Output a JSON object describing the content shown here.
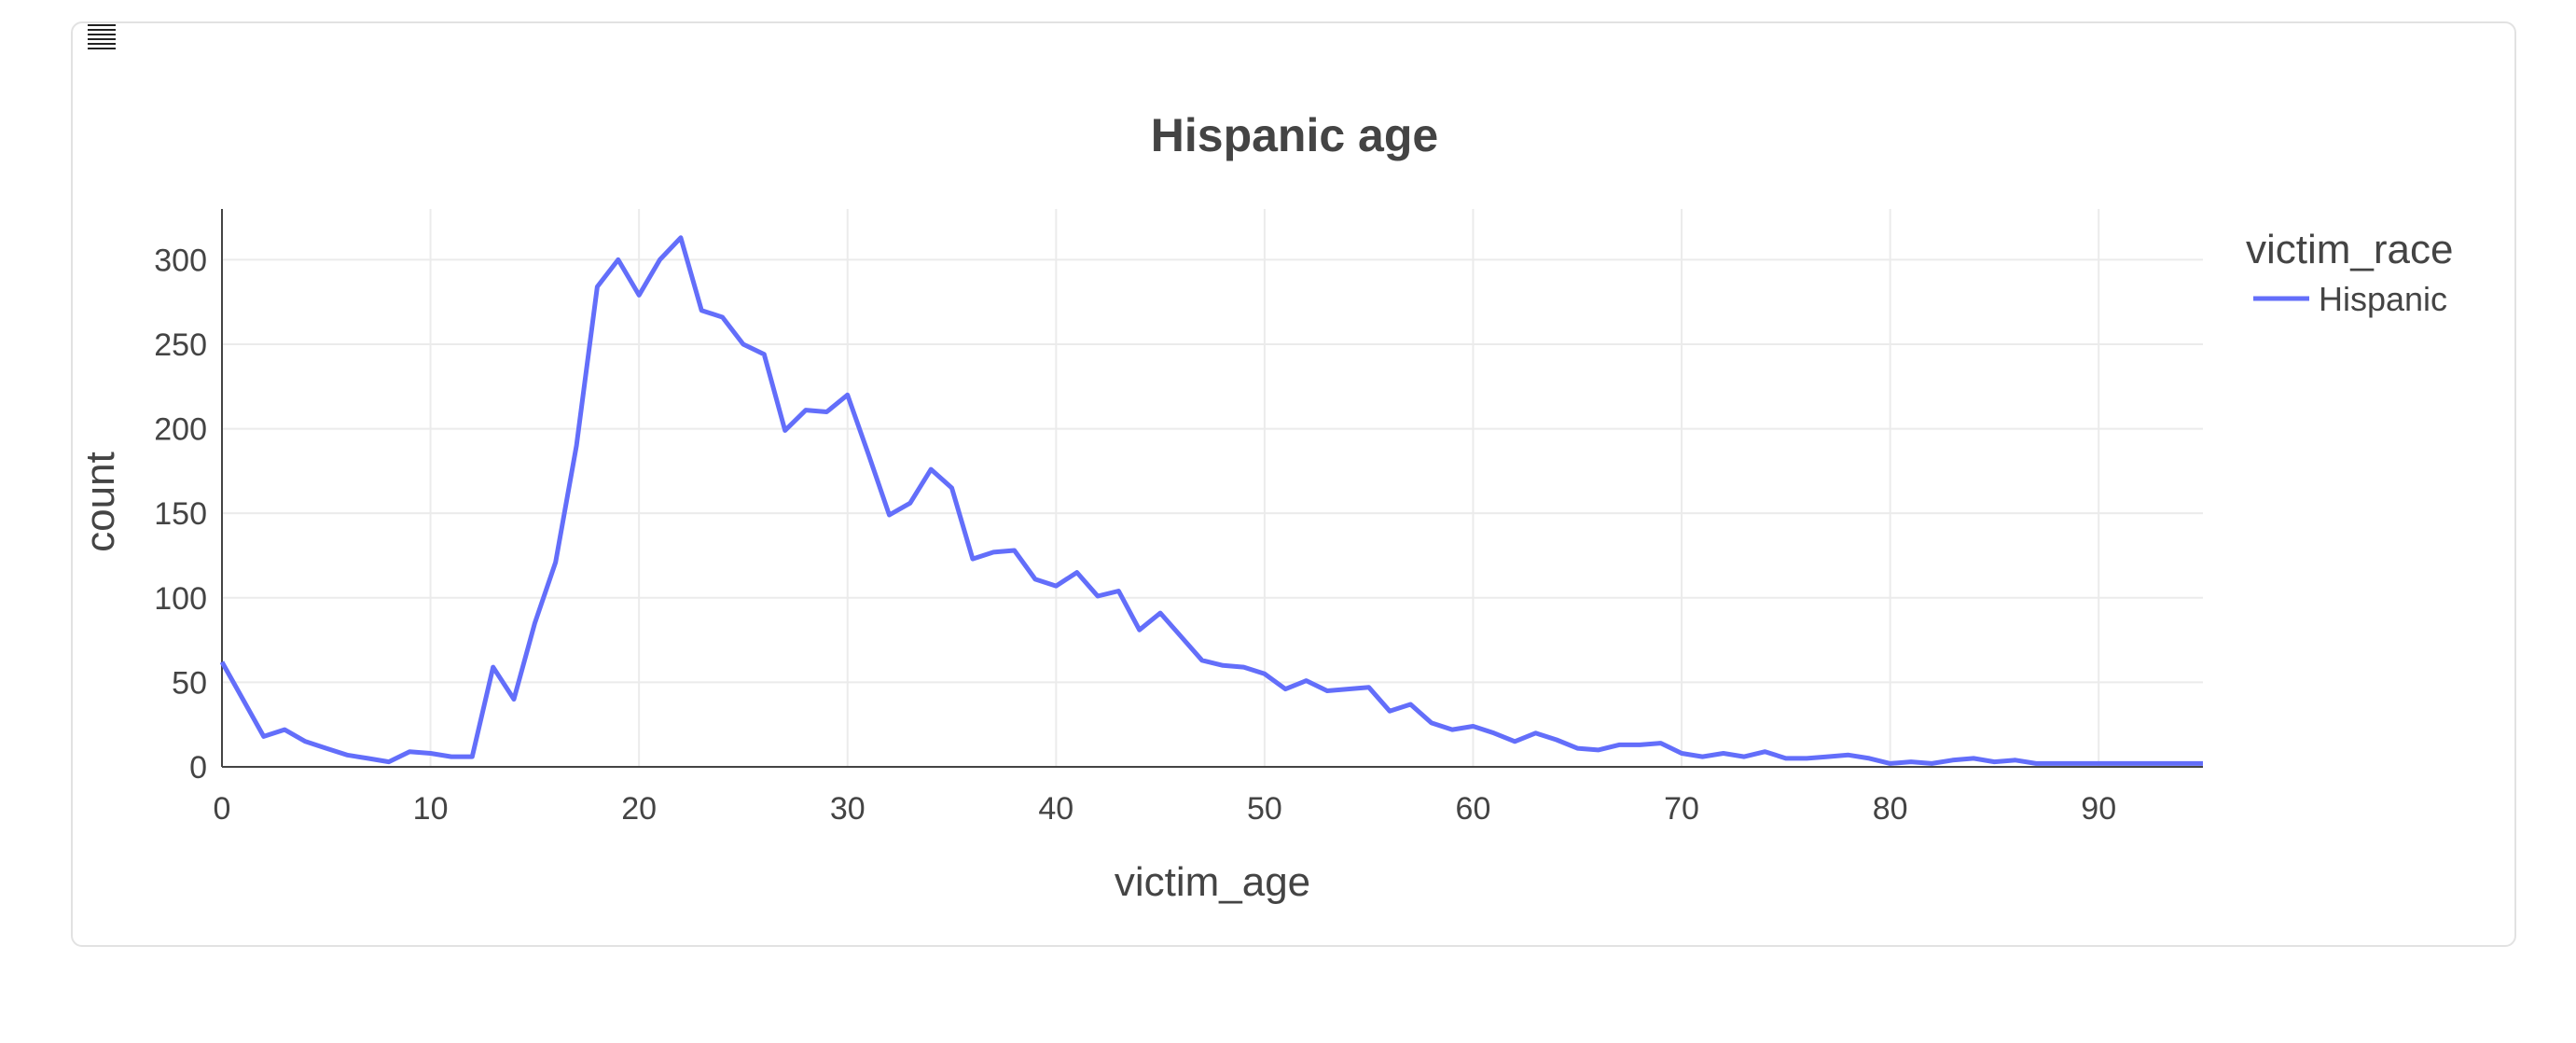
{
  "toolbar": {
    "menu_icon": "list-icon"
  },
  "chart_data": {
    "type": "line",
    "title": "Hispanic age",
    "xlabel": "victim_age",
    "ylabel": "count",
    "xlim": [
      0,
      95
    ],
    "ylim": [
      0,
      330
    ],
    "xticks": [
      0,
      10,
      20,
      30,
      40,
      50,
      60,
      70,
      80,
      90
    ],
    "yticks": [
      0,
      50,
      100,
      150,
      200,
      250,
      300
    ],
    "grid": true,
    "legend_title": "victim_race",
    "legend_position": "top-right",
    "series": [
      {
        "name": "Hispanic",
        "color": "#636efa",
        "x": [
          0,
          1,
          2,
          3,
          4,
          5,
          6,
          7,
          8,
          9,
          10,
          11,
          12,
          13,
          14,
          15,
          16,
          17,
          18,
          19,
          20,
          21,
          22,
          23,
          24,
          25,
          26,
          27,
          28,
          29,
          30,
          31,
          32,
          33,
          34,
          35,
          36,
          37,
          38,
          39,
          40,
          41,
          42,
          43,
          44,
          45,
          46,
          47,
          48,
          49,
          50,
          51,
          52,
          53,
          54,
          55,
          56,
          57,
          58,
          59,
          60,
          61,
          62,
          63,
          64,
          65,
          66,
          67,
          68,
          69,
          70,
          71,
          72,
          73,
          74,
          75,
          76,
          77,
          78,
          79,
          80,
          81,
          82,
          83,
          84,
          85,
          86,
          87,
          88,
          89,
          90,
          91,
          92,
          93,
          94,
          95
        ],
        "y": [
          62,
          40,
          18,
          22,
          15,
          11,
          7,
          5,
          3,
          9,
          8,
          6,
          6,
          59,
          40,
          85,
          121,
          190,
          284,
          300,
          279,
          300,
          313,
          270,
          266,
          250,
          244,
          199,
          211,
          210,
          220,
          185,
          149,
          156,
          176,
          165,
          123,
          127,
          128,
          111,
          107,
          115,
          101,
          104,
          81,
          91,
          77,
          63,
          60,
          59,
          55,
          46,
          51,
          45,
          46,
          47,
          33,
          37,
          26,
          22,
          24,
          20,
          15,
          20,
          16,
          11,
          10,
          13,
          13,
          14,
          8,
          6,
          8,
          6,
          9,
          5,
          5,
          6,
          7,
          5,
          2,
          3,
          2,
          4,
          5,
          3,
          4,
          2,
          2,
          2,
          2,
          2,
          2,
          2,
          2,
          2
        ]
      }
    ]
  }
}
